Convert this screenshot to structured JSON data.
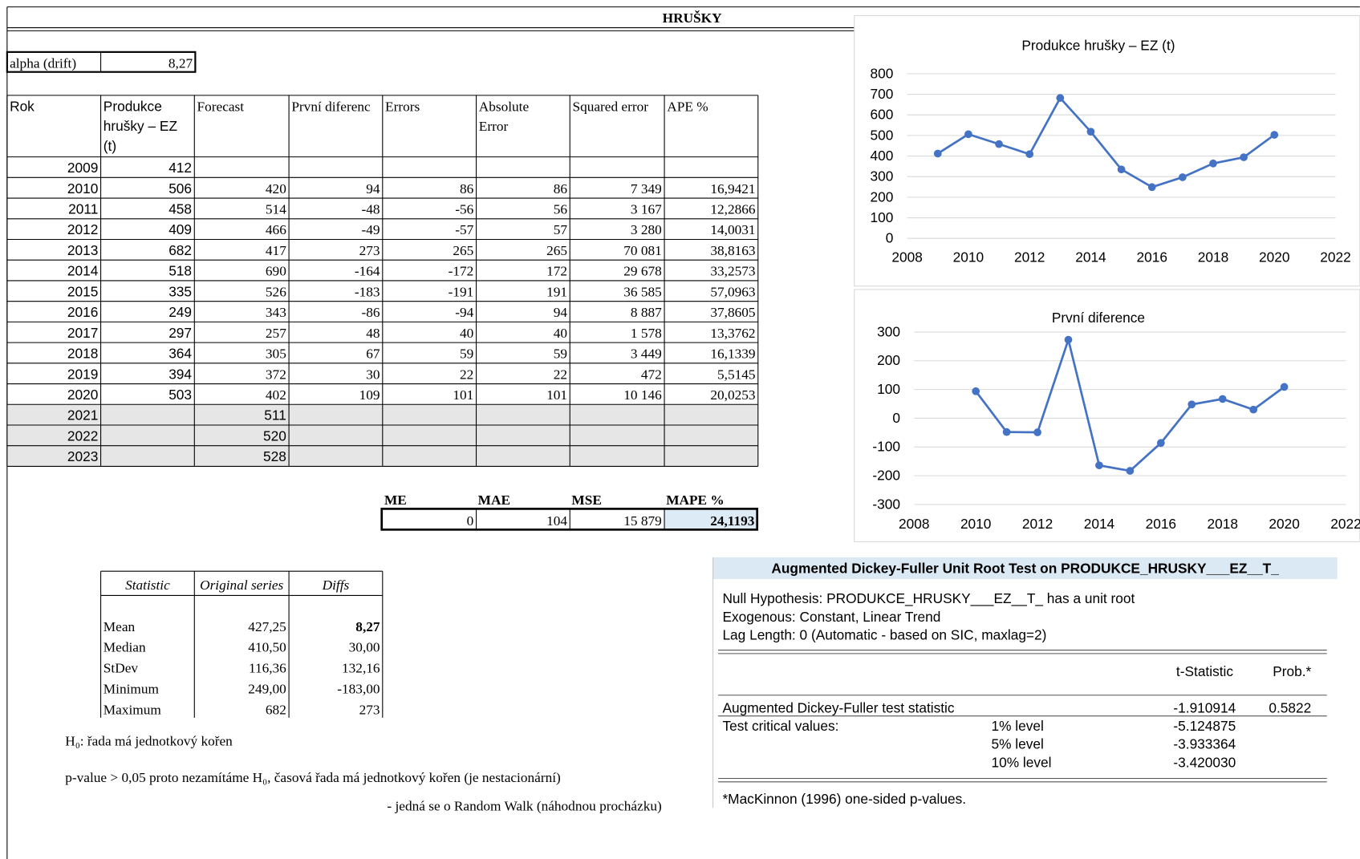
{
  "header": {
    "title": "HRUŠKY"
  },
  "alpha": {
    "label": "alpha (drift)",
    "value": "8,27"
  },
  "table": {
    "headers": [
      [
        "Rok"
      ],
      [
        "Produkce",
        "hrušky – EZ",
        "(t)"
      ],
      [
        "Forecast"
      ],
      [
        "První diferenc"
      ],
      [
        "Errors"
      ],
      [
        "Absolute",
        "Error"
      ],
      [
        "Squared error"
      ],
      [
        "APE %"
      ]
    ],
    "rows": [
      [
        "2009",
        "412",
        null,
        null,
        null,
        null,
        null,
        null
      ],
      [
        "2010",
        "506",
        "420",
        "94",
        "86",
        "86",
        "7 349",
        "16,9421"
      ],
      [
        "2011",
        "458",
        "514",
        "-48",
        "-56",
        "56",
        "3 167",
        "12,2866"
      ],
      [
        "2012",
        "409",
        "466",
        "-49",
        "-57",
        "57",
        "3 280",
        "14,0031"
      ],
      [
        "2013",
        "682",
        "417",
        "273",
        "265",
        "265",
        "70 081",
        "38,8163"
      ],
      [
        "2014",
        "518",
        "690",
        "-164",
        "-172",
        "172",
        "29 678",
        "33,2573"
      ],
      [
        "2015",
        "335",
        "526",
        "-183",
        "-191",
        "191",
        "36 585",
        "57,0963"
      ],
      [
        "2016",
        "249",
        "343",
        "-86",
        "-94",
        "94",
        "8 887",
        "37,8605"
      ],
      [
        "2017",
        "297",
        "257",
        "48",
        "40",
        "40",
        "1 578",
        "13,3762"
      ],
      [
        "2018",
        "364",
        "305",
        "67",
        "59",
        "59",
        "3 449",
        "16,1339"
      ],
      [
        "2019",
        "394",
        "372",
        "30",
        "22",
        "22",
        "472",
        "5,5145"
      ],
      [
        "2020",
        "503",
        "402",
        "109",
        "101",
        "101",
        "10 146",
        "20,0253"
      ],
      [
        "2021",
        null,
        "511",
        null,
        null,
        null,
        null,
        null
      ],
      [
        "2022",
        null,
        "520",
        null,
        null,
        null,
        null,
        null
      ],
      [
        "2023",
        null,
        "528",
        null,
        null,
        null,
        null,
        null
      ]
    ]
  },
  "summary": {
    "headers": [
      "ME",
      "MAE",
      "MSE",
      "MAPE %"
    ],
    "values": [
      "0",
      "104",
      "15 879",
      "24,1193"
    ]
  },
  "stats": {
    "headers": [
      "Statistic",
      "Original series",
      "Diffs"
    ],
    "rows": [
      [
        "Mean",
        "427,25",
        "8,27"
      ],
      [
        "Median",
        "410,50",
        "30,00"
      ],
      [
        "StDev",
        "116,36",
        "132,16"
      ],
      [
        "Minimum",
        "249,00",
        "-183,00"
      ],
      [
        "Maximum",
        "682",
        "273"
      ]
    ]
  },
  "notes": [
    "H₀: řada má jednotkový kořen",
    "p-value > 0,05 proto nezamítáme H₀, časová řada má jednotkový kořen (je nestacionární)",
    "- jedná se o Random Walk (náhodnou procházku)"
  ],
  "adf": {
    "title": "Augmented Dickey-Fuller Unit Root Test on PRODUKCE_HRUSKY___EZ__T_",
    "lines": [
      "Null Hypothesis: PRODUKCE_HRUSKY___EZ__T_ has a unit root",
      "Exogenous: Constant, Linear Trend",
      "Lag Length: 0 (Automatic - based on SIC, maxlag=2)"
    ],
    "columns": [
      "t-Statistic",
      "Prob.*"
    ],
    "rows": [
      {
        "label": "Augmented Dickey-Fuller test statistic",
        "t": "-1.910914",
        "prob": "0.5822"
      },
      {
        "label": "Test critical values:",
        "level": "1% level",
        "t": "-5.124875"
      },
      {
        "level": "5% level",
        "t": "-3.933364"
      },
      {
        "level": "10% level",
        "t": "-3.420030"
      }
    ],
    "footnote": "*MacKinnon (1996) one-sided p-values."
  },
  "chart_data": [
    {
      "type": "line",
      "title": "Produkce hrušky – EZ (t)",
      "color": "#4472c4",
      "grid": true,
      "x": [
        2009,
        2010,
        2011,
        2012,
        2013,
        2014,
        2015,
        2016,
        2017,
        2018,
        2019,
        2020
      ],
      "values": [
        412,
        506,
        458,
        409,
        682,
        518,
        335,
        249,
        297,
        364,
        394,
        503
      ],
      "xlim": [
        2008,
        2022
      ],
      "xticks": [
        2008,
        2010,
        2012,
        2014,
        2016,
        2018,
        2020,
        2022
      ],
      "ylim": [
        0,
        800
      ],
      "yticks": [
        0,
        100,
        200,
        300,
        400,
        500,
        600,
        700,
        800
      ]
    },
    {
      "type": "line",
      "title": "První diference",
      "color": "#4472c4",
      "grid": true,
      "x": [
        2010,
        2011,
        2012,
        2013,
        2014,
        2015,
        2016,
        2017,
        2018,
        2019,
        2020
      ],
      "values": [
        94,
        -48,
        -49,
        273,
        -164,
        -183,
        -86,
        48,
        67,
        30,
        109
      ],
      "xlim": [
        2008,
        2022
      ],
      "xticks": [
        2008,
        2010,
        2012,
        2014,
        2016,
        2018,
        2020,
        2022
      ],
      "ylim": [
        -300,
        300
      ],
      "yticks": [
        -300,
        -200,
        -100,
        0,
        100,
        200,
        300
      ]
    }
  ]
}
